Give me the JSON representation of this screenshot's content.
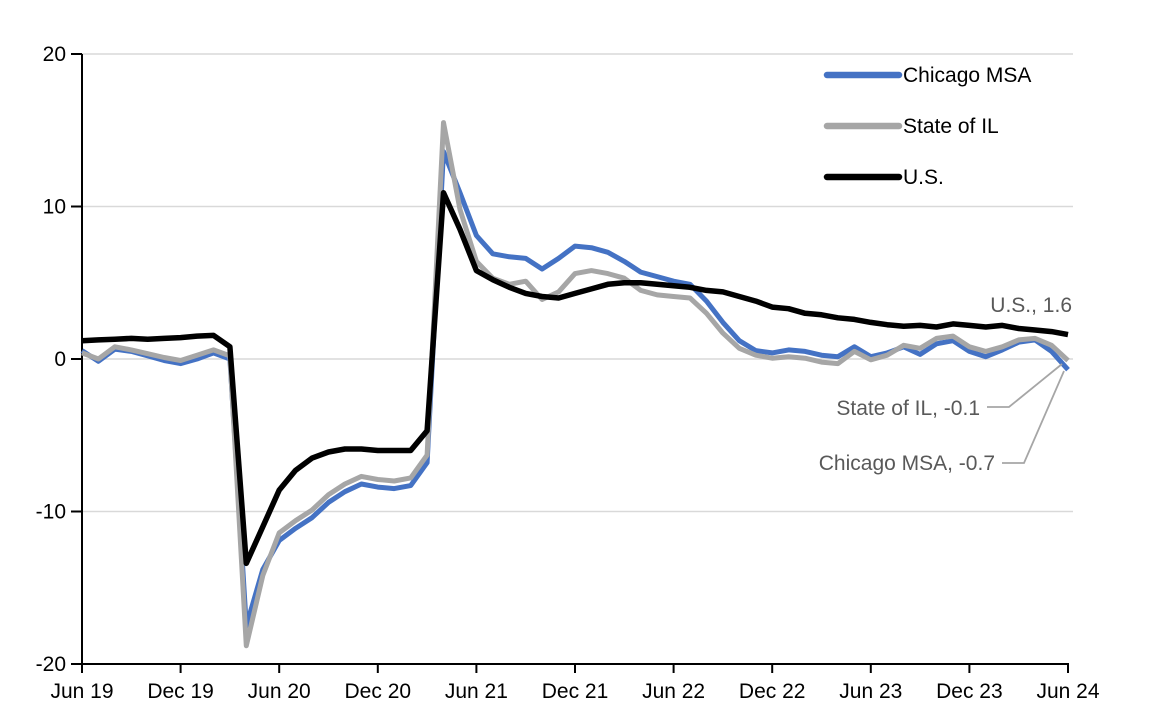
{
  "chart_data": {
    "type": "line",
    "title": "",
    "x_start": "Jun 2019",
    "x_end": "Jun 2024",
    "x_frequency": "monthly",
    "x_tick_labels": [
      "Jun 19",
      "Dec 19",
      "Jun 20",
      "Dec 20",
      "Jun 21",
      "Dec 21",
      "Jun 22",
      "Dec 22",
      "Jun 23",
      "Dec 23",
      "Jun 24"
    ],
    "y_tick_labels": [
      "20",
      "10",
      "0",
      "-10",
      "-20"
    ],
    "y_ticks": [
      20,
      10,
      0,
      -10,
      -20
    ],
    "y_gridlines": [
      20,
      10,
      0,
      -10
    ],
    "ylim": [
      -20,
      20
    ],
    "grid": "horizontal",
    "legend_position": "top-right",
    "series": [
      {
        "name": "Chicago MSA",
        "color": "#4472C4",
        "width": 5,
        "values": [
          0.55,
          -0.15,
          0.65,
          0.5,
          0.2,
          -0.1,
          -0.3,
          0.0,
          0.4,
          0.0,
          -17.5,
          -13.8,
          -11.9,
          -11.1,
          -10.4,
          -9.4,
          -8.7,
          -8.2,
          -8.4,
          -8.5,
          -8.3,
          -6.8,
          13.6,
          10.9,
          8.1,
          6.9,
          6.7,
          6.6,
          5.9,
          6.6,
          7.4,
          7.3,
          7.0,
          6.4,
          5.7,
          5.4,
          5.1,
          4.9,
          3.8,
          2.4,
          1.2,
          0.55,
          0.4,
          0.6,
          0.5,
          0.25,
          0.15,
          0.8,
          0.15,
          0.4,
          0.8,
          0.3,
          1.0,
          1.2,
          0.5,
          0.15,
          0.6,
          1.1,
          1.25,
          0.5,
          -0.7
        ]
      },
      {
        "name": "State of IL",
        "color": "#A6A6A6",
        "width": 5,
        "values": [
          0.4,
          0.0,
          0.8,
          0.6,
          0.35,
          0.1,
          -0.1,
          0.25,
          0.6,
          0.2,
          -18.8,
          -14.2,
          -11.4,
          -10.6,
          -9.9,
          -8.9,
          -8.2,
          -7.7,
          -7.9,
          -8.0,
          -7.8,
          -6.3,
          15.5,
          9.8,
          6.4,
          5.3,
          4.9,
          5.1,
          3.9,
          4.4,
          5.6,
          5.8,
          5.6,
          5.3,
          4.5,
          4.2,
          4.1,
          4.0,
          3.0,
          1.7,
          0.7,
          0.25,
          0.05,
          0.15,
          0.05,
          -0.2,
          -0.3,
          0.5,
          -0.05,
          0.25,
          0.9,
          0.7,
          1.35,
          1.5,
          0.8,
          0.5,
          0.8,
          1.25,
          1.35,
          0.9,
          -0.1
        ]
      },
      {
        "name": "U.S.",
        "color": "#000000",
        "width": 5.5,
        "values": [
          1.2,
          1.25,
          1.3,
          1.35,
          1.3,
          1.35,
          1.4,
          1.5,
          1.55,
          0.8,
          -13.4,
          -11.0,
          -8.6,
          -7.3,
          -6.5,
          -6.1,
          -5.9,
          -5.9,
          -6.0,
          -6.0,
          -6.0,
          -4.7,
          10.9,
          8.5,
          5.8,
          5.2,
          4.7,
          4.3,
          4.1,
          4.0,
          4.3,
          4.6,
          4.9,
          5.0,
          5.0,
          4.9,
          4.8,
          4.7,
          4.5,
          4.4,
          4.1,
          3.8,
          3.4,
          3.3,
          3.0,
          2.9,
          2.7,
          2.6,
          2.4,
          2.25,
          2.15,
          2.2,
          2.1,
          2.3,
          2.2,
          2.1,
          2.2,
          2.0,
          1.9,
          1.8,
          1.6
        ]
      }
    ],
    "end_labels": [
      {
        "series": "U.S.",
        "text": "U.S., 1.6",
        "value": 1.6
      },
      {
        "series": "State of IL",
        "text": "State of IL, -0.1",
        "value": -0.1
      },
      {
        "series": "Chicago MSA",
        "text": "Chicago MSA, -0.7",
        "value": -0.7
      }
    ]
  },
  "legend": {
    "items": [
      "Chicago MSA",
      "State of IL",
      "U.S."
    ]
  },
  "colors": {
    "background": "#FFFFFF",
    "gridline": "#D9D9D9",
    "axis": "#000000",
    "axis_text": "#000000",
    "end_label_text": "#595959",
    "leader_line": "#A6A6A6"
  }
}
